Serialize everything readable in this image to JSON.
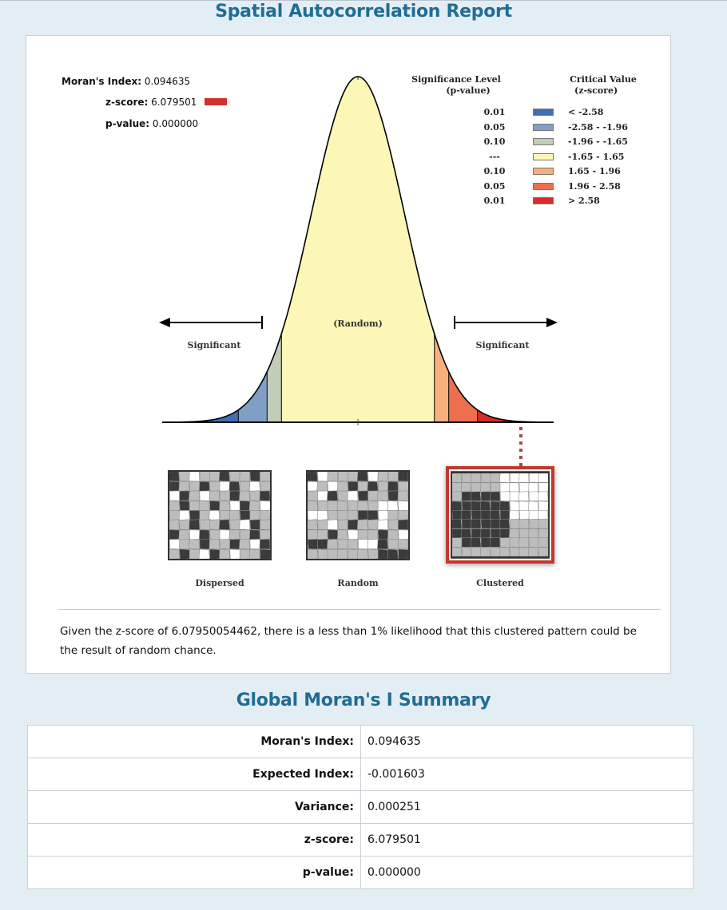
{
  "report": {
    "title": "Spatial Autocorrelation Report",
    "stats": [
      {
        "label": "Moran's Index:",
        "value": "0.094635"
      },
      {
        "label": "z-score:",
        "value": "6.079501"
      },
      {
        "label": "p-value:",
        "value": "0.000000"
      }
    ],
    "zscore_marker_color": "#d32f2f",
    "legend": {
      "pvalue_header_line1": "Significance Level",
      "pvalue_header_line2": "(p-value)",
      "critical_header_line1": "Critical Value",
      "critical_header_line2": "(z-score)",
      "rows": [
        {
          "p": "0.01",
          "range": "< -2.58",
          "color": "#3f6fb4"
        },
        {
          "p": "0.05",
          "range": "-2.58 - -1.96",
          "color": "#7f9fc4"
        },
        {
          "p": "0.10",
          "range": "-1.96 - -1.65",
          "color": "#c2ccb8"
        },
        {
          "p": "---",
          "range": "-1.65 - 1.65",
          "color": "#fcf7b6"
        },
        {
          "p": "0.10",
          "range": "1.65 - 1.96",
          "color": "#f7b07c"
        },
        {
          "p": "0.05",
          "range": "1.96 - 2.58",
          "color": "#ee6f4f"
        },
        {
          "p": "0.01",
          "range": "> 2.58",
          "color": "#d42d2d"
        }
      ]
    },
    "curve_labels": {
      "left": "Significant",
      "center": "(Random)",
      "right": "Significant"
    },
    "thumbnails": [
      {
        "label": "Dispersed"
      },
      {
        "label": "Random"
      },
      {
        "label": "Clustered"
      }
    ],
    "interpretation": "Given the z-score of 6.07950054462, there is a less than 1% likelihood that this clustered pattern could be the result of random chance."
  },
  "summary": {
    "title": "Global Moran's I Summary",
    "rows": [
      {
        "label": "Moran's Index:",
        "value": "0.094635"
      },
      {
        "label": "Expected Index:",
        "value": "-0.001603"
      },
      {
        "label": "Variance:",
        "value": "0.000251"
      },
      {
        "label": "z-score:",
        "value": "6.079501"
      },
      {
        "label": "p-value:",
        "value": "0.000000"
      }
    ]
  }
}
